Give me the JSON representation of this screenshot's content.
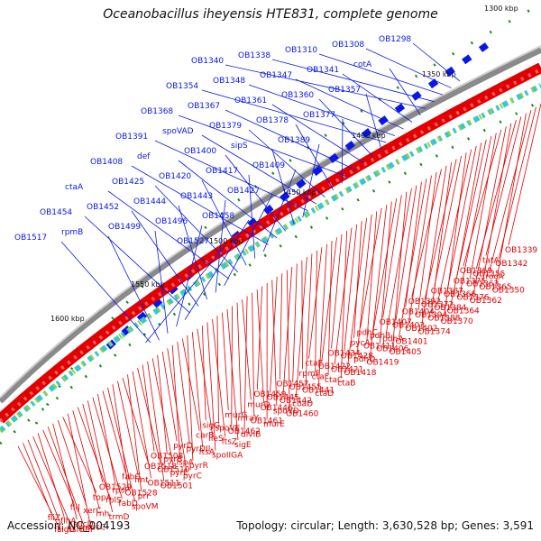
{
  "title": "Oceanobacillus iheyensis HTE831, complete genome",
  "footer": {
    "accession": "Accession: NC_004193",
    "topology": "Topology: circular; Length: 3,630,528 bp; Genes: 3,591"
  },
  "colors": {
    "forward": "#0a18e6",
    "reverse": "#e00000",
    "backbone": "#8a8a8a",
    "ticks": "#1b8a1b"
  },
  "kbp_ticks": [
    "1300 kbp",
    "1350 kbp",
    "1400 kbp",
    "1450 kbp",
    "1500 kbp",
    "1550 kbp",
    "1600 kbp"
  ],
  "forward_labels": [
    "OB1298",
    "OB1308",
    "OB1310",
    "OB1338",
    "OB1340",
    "cotA",
    "OB1341",
    "OB1347",
    "OB1348",
    "OB1354",
    "OB1357",
    "OB1360",
    "OB1361",
    "OB1367",
    "OB1368",
    "OB1377",
    "OB1378",
    "OB1379",
    "spoVAD",
    "OB1391",
    "OB1389",
    "sipS",
    "OB1400",
    "def",
    "OB1408",
    "OB1409",
    "OB1417",
    "OB1420",
    "OB1425",
    "ctaA",
    "OB1427",
    "OB1443",
    "OB1444",
    "OB1452",
    "OB1454",
    "OB1458",
    "OB1496",
    "OB1499",
    "rpmB",
    "OB1517",
    "OB1527"
  ],
  "reverse_labels": [
    "OB1339",
    "OB1342",
    "rocA",
    "OB1350",
    "tatA",
    "OB1355",
    "OB1365",
    "OB1362",
    "OB1369",
    "OB1363",
    "OB1376",
    "OB1364",
    "OB1375",
    "OB1366",
    "OB1384",
    "OB1370",
    "OB1387",
    "OB1372",
    "OB1388",
    "OB1374",
    "OB1392",
    "OB1394",
    "OB1402",
    "OB1401",
    "OB1404",
    "OB1403",
    "pdhA",
    "OB1405",
    "OB1407",
    "pdhB",
    "OB1406",
    "OB1419",
    "pdhC",
    "OB1411",
    "pdhD",
    "OB1418",
    "pycA",
    "OB1428",
    "OB1421",
    "ctaB",
    "OB1434",
    "OB1422",
    "ctaC",
    "ctaD",
    "ctaE",
    "ctaF",
    "OB1441",
    "coaD",
    "rpmF",
    "OB1455",
    "OB1442",
    "OB1460",
    "OB1457",
    "OB1445",
    "spoVD",
    "murE",
    "OB1459",
    "OB1446",
    "OB1461",
    "divIB",
    "murD",
    "mraY",
    "OB1462",
    "sigE",
    "murG",
    "spoVE",
    "ftsZ",
    "spoIIGA",
    "sigG",
    "ileS",
    "ftsA",
    "pyrR",
    "carB",
    "pyrDII",
    "lspA",
    "pyrC",
    "pyrD",
    "pyrB",
    "pyrE",
    "OB1501",
    "OB1508",
    "OB1510",
    "OB1511",
    "pri",
    "OB1518",
    "fmt",
    "OB1528",
    "spoVM",
    "fabG",
    "rpsP",
    "fabD",
    "trmD",
    "OB1529",
    "rplS",
    "rnh",
    "sucC",
    "topA",
    "xerC",
    "sucD",
    "flhF",
    "fliJ",
    "flhA",
    "hslU",
    "sigD",
    "fliZ",
    "fliI"
  ]
}
